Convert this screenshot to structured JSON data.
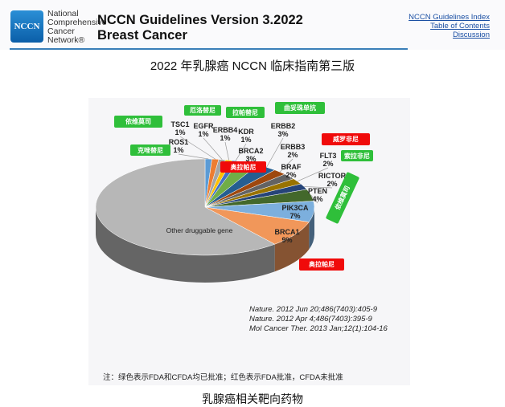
{
  "header": {
    "logo_text": "NCCN",
    "org_lines": [
      "National",
      "Comprehensive",
      "Cancer",
      "Network®"
    ],
    "title_line1": "NCCN Guidelines Version 3.2022",
    "title_line2": "Breast Cancer",
    "links": [
      "NCCN Guidelines Index",
      "Table of Contents",
      "Discussion"
    ]
  },
  "subtitle": "2022 年乳腺癌 NCCN 临床指南第三版",
  "chart_data": {
    "type": "pie",
    "title": "",
    "slices": [
      {
        "label": "ROS1",
        "value": 1,
        "pct": "1%",
        "color": "#5b9bd5"
      },
      {
        "label": "TSC1",
        "value": 1,
        "pct": "1%",
        "color": "#ed7d31"
      },
      {
        "label": "EGFR",
        "value": 1,
        "pct": "1%",
        "color": "#a5a5a5"
      },
      {
        "label": "ERBB4",
        "value": 1,
        "pct": "1%",
        "color": "#ffc000"
      },
      {
        "label": "KDR",
        "value": 1,
        "pct": "1%",
        "color": "#4472c4"
      },
      {
        "label": "BRCA2",
        "value": 3,
        "pct": "3%",
        "color": "#70ad47"
      },
      {
        "label": "ERBB2",
        "value": 3,
        "pct": "3%",
        "color": "#255e91"
      },
      {
        "label": "ERBB3",
        "value": 2,
        "pct": "2%",
        "color": "#9e480e"
      },
      {
        "label": "BRAF",
        "value": 2,
        "pct": "2%",
        "color": "#636363"
      },
      {
        "label": "FLT3",
        "value": 2,
        "pct": "2%",
        "color": "#997300"
      },
      {
        "label": "RICTOR",
        "value": 2,
        "pct": "2%",
        "color": "#264478"
      },
      {
        "label": "PTEN",
        "value": 4,
        "pct": "4%",
        "color": "#43682b"
      },
      {
        "label": "PIK3CA",
        "value": 7,
        "pct": "7%",
        "color": "#7cafdd"
      },
      {
        "label": "BRCA1",
        "value": 9,
        "pct": "9%",
        "color": "#f1975a"
      },
      {
        "label": "Other druggable gene",
        "value": 61,
        "pct": "",
        "color": "#b7b7b7"
      }
    ],
    "drug_tags": [
      {
        "text": "依维莫司",
        "status": "green"
      },
      {
        "text": "克唑替尼",
        "status": "green"
      },
      {
        "text": "厄洛替尼",
        "status": "green"
      },
      {
        "text": "拉帕替尼",
        "status": "green"
      },
      {
        "text": "曲妥珠单抗",
        "status": "green"
      },
      {
        "text": "奥拉帕尼",
        "status": "red"
      },
      {
        "text": "威罗非尼",
        "status": "red"
      },
      {
        "text": "索拉非尼",
        "status": "green"
      },
      {
        "text": "依维莫司",
        "status": "green"
      },
      {
        "text": "奥拉帕尼",
        "status": "red"
      }
    ],
    "references": [
      "Nature. 2012 Jun 20;486(7403):405-9",
      "Nature. 2012 Apr 4;486(7403):395-9",
      "Mol Cancer Ther. 2013 Jan;12(1):104-16"
    ],
    "note": "注：绿色表示FDA和CFDA均已批准；红色表示FDA批准，CFDA未批准"
  },
  "caption": "乳腺癌相关靶向药物"
}
